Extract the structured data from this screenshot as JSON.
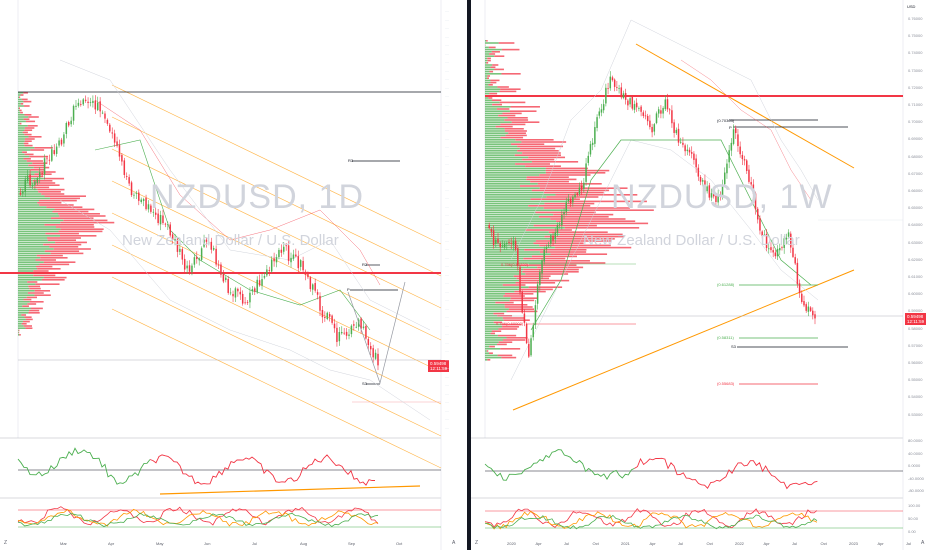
{
  "left": {
    "watermark": {
      "symbol": "NZDUSD, 1D",
      "name": "New Zealand Dollar / U.S. Dollar"
    },
    "levels": {
      "r3": "R3",
      "r2": "R2",
      "p": "P",
      "s3": "S3"
    },
    "price_tag": {
      "price": "0.59498",
      "countdown": "12:11:59"
    },
    "time_ticks": [
      "Mar",
      "Apr",
      "May",
      "Jun",
      "Jul",
      "Aug",
      "Sep",
      "Oct"
    ],
    "controls": {
      "zoom_left": "Z",
      "zoom_right": "A"
    }
  },
  "right": {
    "watermark": {
      "symbol": "NZDUSD, 1W",
      "name": "New Zealand Dollar / U.S. Dollar"
    },
    "currency": "USD",
    "price_axis": [
      "0.76000",
      "0.75000",
      "0.74000",
      "0.73000",
      "0.72000",
      "0.71000",
      "0.70000",
      "0.69000",
      "0.68000",
      "0.67000",
      "0.66000",
      "0.65000",
      "0.64000",
      "0.63000",
      "0.62000",
      "0.61000",
      "0.60000",
      "0.59000",
      "0.58000",
      "0.57000",
      "0.56000",
      "0.55000",
      "0.54000",
      "0.53000"
    ],
    "rsi_axis": [
      "80.0000",
      "40.0000",
      "0.0000",
      "-40.0000",
      "-80.0000"
    ],
    "stoch_axis": [
      "100.00",
      "50.00",
      "0.00"
    ],
    "fib_labels": {
      "f1": "(0.70363)",
      "p": "P",
      "f_ret": "0.786(0.60222)",
      "f_ret2": "0.786(0.60003)",
      "f2": "(0.61288)",
      "f3": "(0.58311)",
      "s3": "S3",
      "f4": "(0.55683)"
    },
    "price_tag": {
      "price": "0.59498",
      "countdown": "12:11:59"
    },
    "time_ticks": [
      "2020",
      "Apr",
      "Jul",
      "Oct",
      "2021",
      "Apr",
      "Jul",
      "Oct",
      "2022",
      "Apr",
      "Jul",
      "Oct",
      "2023",
      "Apr",
      "Jul"
    ],
    "controls": {
      "zoom_left": "Z",
      "zoom_right": "A"
    }
  },
  "colors": {
    "up": "#4caf50",
    "down": "#f23645",
    "trend": "#ff9800",
    "level": "#131722",
    "hline": "#f23645"
  }
}
